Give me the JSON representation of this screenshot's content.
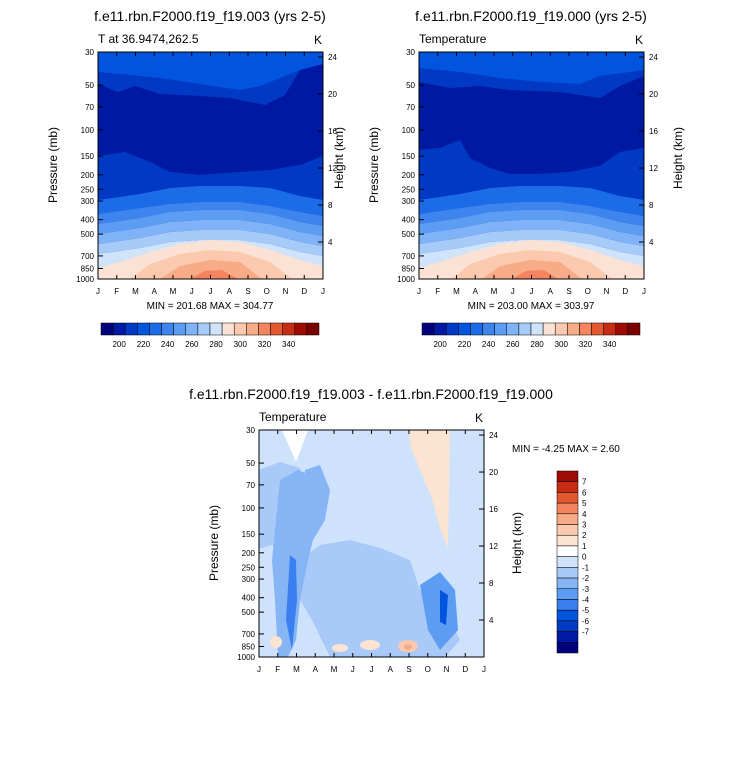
{
  "colors": {
    "temp_scale": [
      "#00007f",
      "#0019a3",
      "#0039c4",
      "#0054de",
      "#1c6ce8",
      "#3d84ee",
      "#5c9cf2",
      "#7fb2f6",
      "#a6cbf9",
      "#cfe3fb",
      "#fbe2d4",
      "#fbcaae",
      "#f8ab87",
      "#f3845d",
      "#e4582f",
      "#c72c13",
      "#9e0b05",
      "#7a0000"
    ],
    "diff_scale": [
      "#00007f",
      "#0019a3",
      "#0039c4",
      "#0054de",
      "#3a7ff0",
      "#5c9cf2",
      "#86b5f6",
      "#a9c9f8",
      "#cfe2fb",
      "#ffffff",
      "#fde3d2",
      "#fbcaae",
      "#f8ab87",
      "#f3845d",
      "#e4582f",
      "#c72c13",
      "#9e0b05"
    ]
  },
  "months": [
    "J",
    "F",
    "M",
    "A",
    "M",
    "J",
    "J",
    "A",
    "S",
    "O",
    "N",
    "D",
    "J"
  ],
  "pressure_ticks": [
    "30",
    "50",
    "70",
    "100",
    "150",
    "200",
    "250",
    "300",
    "400",
    "500",
    "700",
    "850",
    "1000"
  ],
  "height_ticks": [
    "24",
    "20",
    "16",
    "12",
    "8",
    "4"
  ],
  "axis": {
    "ylabel": "Pressure (mb)",
    "ylabel_right": "Height (km)",
    "unit": "K"
  },
  "chart_data": [
    {
      "type": "heatmap",
      "title": "f.e11.rbn.F2000.f19_f19.003 (yrs 2-5)",
      "subtitle_left": "T at 36.9474,262.5",
      "unit": "K",
      "xlabel": "",
      "ylabel": "Pressure (mb)",
      "ylabel_right": "Height (km)",
      "x": [
        "J",
        "F",
        "M",
        "A",
        "M",
        "J",
        "J",
        "A",
        "S",
        "O",
        "N",
        "D",
        "J"
      ],
      "ylim": [
        1000,
        30
      ],
      "min": 201.68,
      "max": 304.77,
      "minmax_text": "MIN = 201.68  MAX = 304.77",
      "colorbar_labels": [
        "200",
        "220",
        "240",
        "260",
        "280",
        "300",
        "320",
        "340"
      ]
    },
    {
      "type": "heatmap",
      "title": "f.e11.rbn.F2000.f19_f19.000 (yrs 2-5)",
      "subtitle_left": "Temperature",
      "unit": "K",
      "xlabel": "",
      "ylabel": "Pressure (mb)",
      "ylabel_right": "Height (km)",
      "x": [
        "J",
        "F",
        "M",
        "A",
        "M",
        "J",
        "J",
        "A",
        "S",
        "O",
        "N",
        "D",
        "J"
      ],
      "ylim": [
        1000,
        30
      ],
      "min": 203.0,
      "max": 303.97,
      "minmax_text": "MIN = 203.00  MAX = 303.97",
      "colorbar_labels": [
        "200",
        "220",
        "240",
        "260",
        "280",
        "300",
        "320",
        "340"
      ]
    },
    {
      "type": "heatmap",
      "title": "f.e11.rbn.F2000.f19_f19.003 - f.e11.rbn.F2000.f19_f19.000",
      "subtitle_left": "Temperature",
      "unit": "K",
      "xlabel": "",
      "ylabel": "Pressure (mb)",
      "ylabel_right": "Height (km)",
      "x": [
        "J",
        "F",
        "M",
        "A",
        "M",
        "J",
        "J",
        "A",
        "S",
        "O",
        "N",
        "D",
        "J"
      ],
      "ylim": [
        1000,
        30
      ],
      "min": -4.25,
      "max": 2.6,
      "minmax_text": "MIN =  -4.25  MAX =   2.60",
      "colorbar_labels": [
        "7",
        "6",
        "5",
        "4",
        "3",
        "2",
        "1",
        "0",
        "-1",
        "-2",
        "-3",
        "-4",
        "-5",
        "-6",
        "-7"
      ]
    }
  ]
}
